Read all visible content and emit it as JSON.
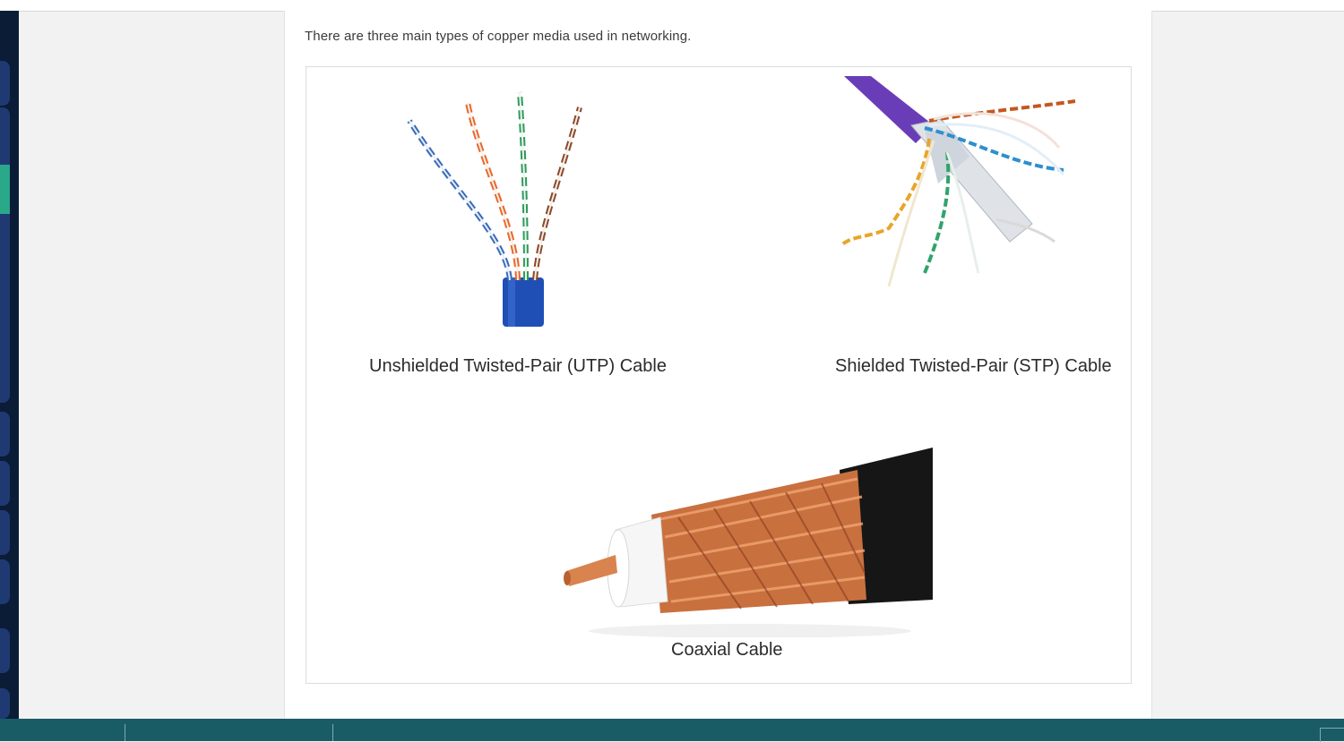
{
  "content": {
    "intro_text": "There are three main types of copper media used in networking."
  },
  "cables": {
    "utp": {
      "caption": "Unshielded Twisted-Pair (UTP) Cable"
    },
    "stp": {
      "caption": "Shielded Twisted-Pair (STP) Cable"
    },
    "coax": {
      "caption": "Coaxial Cable"
    }
  },
  "colors": {
    "utp_jacket": "#1f4fb5",
    "stp_jacket": "#6a3db8",
    "coax_braid": "#c9703f",
    "coax_jacket": "#161616",
    "rail": "#0b1c36",
    "taskbar": "#1a5c66"
  },
  "taskbar": {
    "items": [
      "",
      ""
    ]
  }
}
